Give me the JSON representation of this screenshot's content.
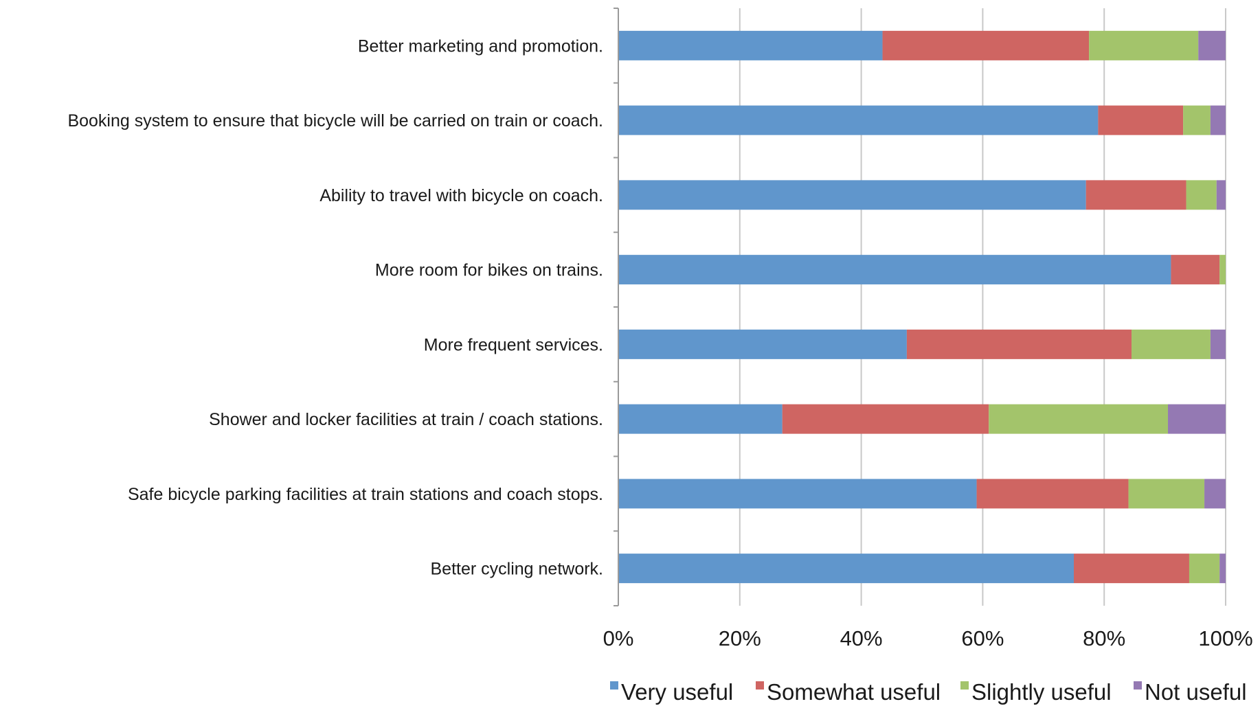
{
  "chart_data": {
    "type": "bar",
    "orientation": "horizontal",
    "stacked": "percent",
    "categories": [
      "Better marketing and promotion.",
      "Booking system to ensure that bicycle will be carried on train or coach.",
      "Ability to travel with bicycle on coach.",
      "More room for bikes on trains.",
      "More frequent services.",
      "Shower and locker facilities at train / coach stations.",
      "Safe bicycle parking facilities at train stations and coach stops.",
      "Better cycling network."
    ],
    "series": [
      {
        "name": "Very useful",
        "color": "#6096cc",
        "values": [
          43.5,
          79,
          77,
          91,
          47.5,
          27,
          59,
          75
        ]
      },
      {
        "name": "Somewhat useful",
        "color": "#cf6562",
        "values": [
          34,
          14,
          16.5,
          8,
          37,
          34,
          25,
          19
        ]
      },
      {
        "name": "Slightly useful",
        "color": "#a3c46b",
        "values": [
          18,
          4.5,
          5,
          1,
          13,
          29.5,
          12.5,
          5
        ]
      },
      {
        "name": "Not useful",
        "color": "#9479b3",
        "values": [
          4.5,
          2.5,
          1.5,
          0,
          2.5,
          9.5,
          3.5,
          1
        ]
      }
    ],
    "xlim": [
      0,
      100
    ],
    "xticks": [
      "0%",
      "20%",
      "40%",
      "60%",
      "80%",
      "100%"
    ],
    "grid": "vertical",
    "legend": "bottom",
    "title": "",
    "xlabel": "",
    "ylabel": ""
  }
}
